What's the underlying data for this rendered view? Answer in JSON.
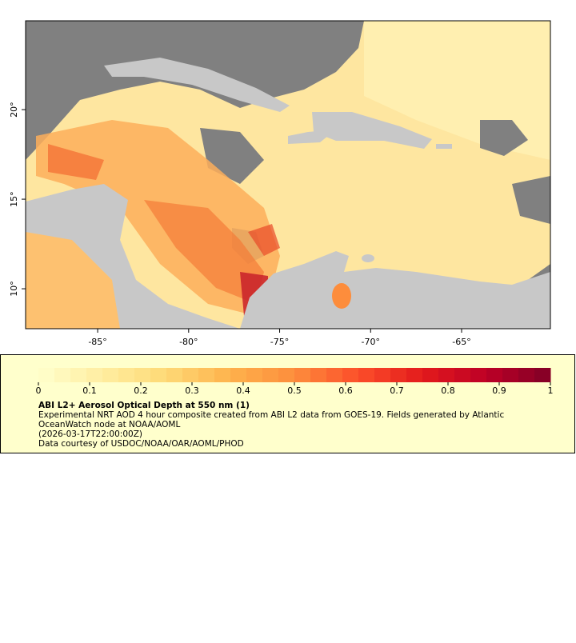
{
  "map": {
    "xlim": [
      -88.96,
      -60.12
    ],
    "ylim": [
      7.77,
      24.96
    ],
    "xticks": [
      {
        "value": -85,
        "label": "-85°"
      },
      {
        "value": -80,
        "label": "-80°"
      },
      {
        "value": -75,
        "label": "-75°"
      },
      {
        "value": -70,
        "label": "-70°"
      },
      {
        "value": -65,
        "label": "-65°"
      }
    ],
    "yticks": [
      {
        "value": 10,
        "label": "10°"
      },
      {
        "value": 15,
        "label": "15°"
      },
      {
        "value": 20,
        "label": "20°"
      }
    ]
  },
  "legend": {
    "colorbar": {
      "lim": [
        0,
        1
      ],
      "ticks": [
        0,
        0.1,
        0.2,
        0.3,
        0.4,
        0.5,
        0.6,
        0.7,
        0.8,
        0.9,
        1
      ],
      "colors": [
        "#ffffcc",
        "#ffeda0",
        "#fed976",
        "#feb24c",
        "#fd8d3c",
        "#fc4e2a",
        "#e31a1c",
        "#bd0026",
        "#800026"
      ]
    },
    "title": "ABI L2+ Aerosol Optical Depth at 550 nm (1)",
    "summary": "Experimental NRT AOD 4 hour composite created from ABI L2 data from GOES-19. Fields generated by Atlantic OceanWatch node at NOAA/AOML",
    "time": "(2026-03-17T22:00:00Z)",
    "credit": "Data courtesy of USDOC/NOAA/OAR/AOML/PHOD"
  }
}
